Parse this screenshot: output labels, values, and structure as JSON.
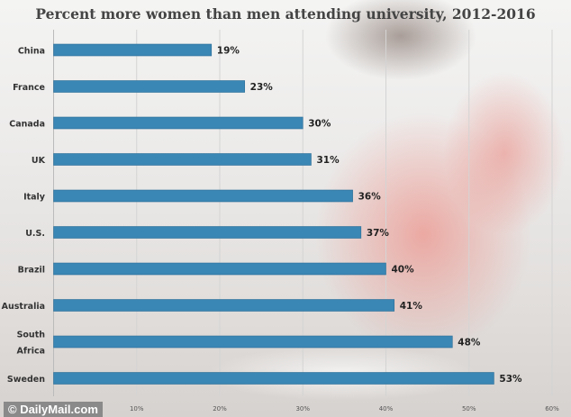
{
  "logo_text": "© DailyMail.com",
  "chart_data": {
    "type": "bar",
    "orientation": "horizontal",
    "title": "Percent more women than men attending university, 2012-2016",
    "categories": [
      "China",
      "France",
      "Canada",
      "UK",
      "Italy",
      "U.S.",
      "Brazil",
      "Australia",
      "South Africa",
      "Sweden"
    ],
    "values": [
      19,
      23,
      30,
      31,
      36,
      37,
      40,
      41,
      48,
      53
    ],
    "data_labels": [
      "19%",
      "23%",
      "30%",
      "31%",
      "36%",
      "37%",
      "40%",
      "41%",
      "48%",
      "53%"
    ],
    "xticks": [
      10,
      20,
      30,
      40,
      50,
      60
    ],
    "xtick_labels": [
      "10%",
      "20%",
      "30%",
      "40%",
      "50%",
      "60%"
    ],
    "xlim": [
      0,
      60
    ],
    "xlabel": "",
    "ylabel": "",
    "grid": true,
    "bar_color": "#3a86b4"
  }
}
